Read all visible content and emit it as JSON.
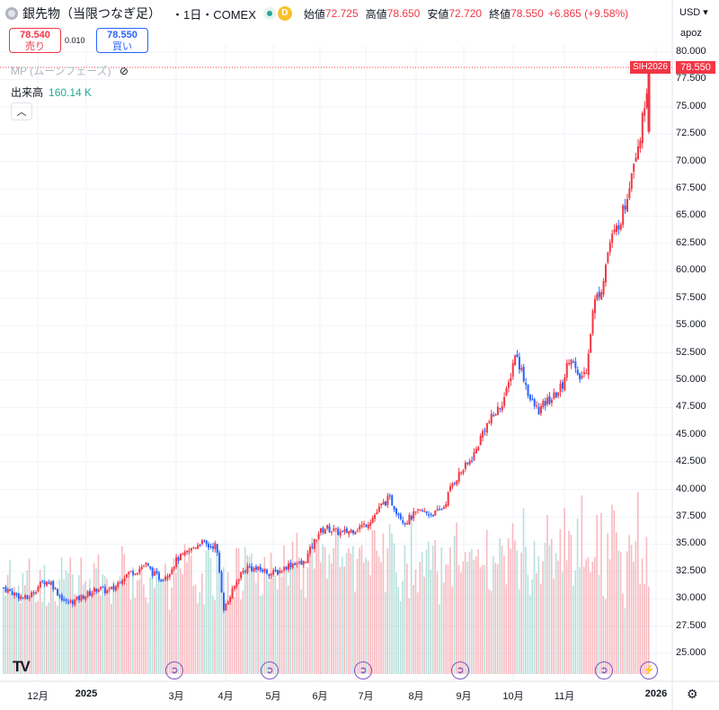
{
  "header": {
    "title": "銀先物（当限つなぎ足）",
    "interval": "・1日・COMEX",
    "d_badge": "D",
    "open_label": "始値",
    "open": "72.725",
    "high_label": "高値",
    "high": "78.650",
    "low_label": "安値",
    "low": "72.720",
    "close_label": "終値",
    "close": "78.550",
    "change": "+6.865 (+9.58%)"
  },
  "trade": {
    "sell_price": "78.540",
    "sell_label": "売り",
    "spread": "0.010",
    "buy_price": "78.550",
    "buy_label": "買い"
  },
  "indicators": {
    "mp_label": "MP (ムーンフェーズ)",
    "volume_label": "出来高",
    "volume_value": "160.14 K",
    "collapse_icon": "chevron-up-icon"
  },
  "right_panel": {
    "currency": "USD",
    "scale": "apoz"
  },
  "price_tag": {
    "symbol": "SIH2026",
    "price": "78.550"
  },
  "logo": "TV",
  "colors": {
    "up": "#f23645",
    "down": "#2962ff",
    "vol_up": "#f7a9b0",
    "vol_down": "#a6d8d3"
  },
  "chart_data": {
    "type": "candlestick",
    "y_axis_ticks": [
      "80.000",
      "77.500",
      "75.000",
      "72.500",
      "70.000",
      "67.500",
      "65.000",
      "62.500",
      "60.000",
      "57.500",
      "55.000",
      "52.500",
      "50.000",
      "47.500",
      "45.000",
      "42.500",
      "40.000",
      "37.500",
      "35.000",
      "32.500",
      "30.000",
      "27.500",
      "25.000"
    ],
    "ylim": [
      24,
      80.5
    ],
    "x_axis_ticks": [
      "12月",
      "2025",
      "3月",
      "4月",
      "5月",
      "6月",
      "7月",
      "8月",
      "9月",
      "10月",
      "11月",
      "2026"
    ],
    "grid": true,
    "price_series": [
      {
        "m": "2024-11",
        "v": 31.0
      },
      {
        "m": "2024-11",
        "v": 30.6
      },
      {
        "m": "2024-11",
        "v": 30.2
      },
      {
        "m": "2024-12",
        "v": 30.0
      },
      {
        "m": "2024-12",
        "v": 30.8
      },
      {
        "m": "2024-12",
        "v": 31.6
      },
      {
        "m": "2024-12",
        "v": 31.5
      },
      {
        "m": "2024-12",
        "v": 30.4
      },
      {
        "m": "2024-12",
        "v": 29.6
      },
      {
        "m": "2025-01",
        "v": 29.8
      },
      {
        "m": "2025-01",
        "v": 30.2
      },
      {
        "m": "2025-01",
        "v": 30.5
      },
      {
        "m": "2025-01",
        "v": 31.0
      },
      {
        "m": "2025-01",
        "v": 30.7
      },
      {
        "m": "2025-01",
        "v": 30.9
      },
      {
        "m": "2025-02",
        "v": 31.9
      },
      {
        "m": "2025-02",
        "v": 32.4
      },
      {
        "m": "2025-02",
        "v": 32.6
      },
      {
        "m": "2025-02",
        "v": 33.2
      },
      {
        "m": "2025-02",
        "v": 32.3
      },
      {
        "m": "2025-02",
        "v": 31.8
      },
      {
        "m": "2025-03",
        "v": 32.4
      },
      {
        "m": "2025-03",
        "v": 33.6
      },
      {
        "m": "2025-03",
        "v": 34.0
      },
      {
        "m": "2025-03",
        "v": 34.6
      },
      {
        "m": "2025-03",
        "v": 35.2
      },
      {
        "m": "2025-03",
        "v": 34.8
      },
      {
        "m": "2025-04",
        "v": 34.9
      },
      {
        "m": "2025-04",
        "v": 29.0
      },
      {
        "m": "2025-04",
        "v": 30.5
      },
      {
        "m": "2025-04",
        "v": 32.2
      },
      {
        "m": "2025-04",
        "v": 32.9
      },
      {
        "m": "2025-04",
        "v": 32.7
      },
      {
        "m": "2025-05",
        "v": 32.6
      },
      {
        "m": "2025-05",
        "v": 32.3
      },
      {
        "m": "2025-05",
        "v": 32.5
      },
      {
        "m": "2025-05",
        "v": 33.0
      },
      {
        "m": "2025-05",
        "v": 33.3
      },
      {
        "m": "2025-05",
        "v": 33.1
      },
      {
        "m": "2025-06",
        "v": 34.5
      },
      {
        "m": "2025-06",
        "v": 36.0
      },
      {
        "m": "2025-06",
        "v": 36.5
      },
      {
        "m": "2025-06",
        "v": 36.2
      },
      {
        "m": "2025-06",
        "v": 36.0
      },
      {
        "m": "2025-06",
        "v": 36.2
      },
      {
        "m": "2025-07",
        "v": 36.5
      },
      {
        "m": "2025-07",
        "v": 36.8
      },
      {
        "m": "2025-07",
        "v": 37.5
      },
      {
        "m": "2025-07",
        "v": 38.5
      },
      {
        "m": "2025-07",
        "v": 39.2
      },
      {
        "m": "2025-07",
        "v": 38.0
      },
      {
        "m": "2025-08",
        "v": 37.0
      },
      {
        "m": "2025-08",
        "v": 37.6
      },
      {
        "m": "2025-08",
        "v": 38.0
      },
      {
        "m": "2025-08",
        "v": 37.8
      },
      {
        "m": "2025-08",
        "v": 37.8
      },
      {
        "m": "2025-08",
        "v": 38.5
      },
      {
        "m": "2025-09",
        "v": 40.5
      },
      {
        "m": "2025-09",
        "v": 41.5
      },
      {
        "m": "2025-09",
        "v": 42.3
      },
      {
        "m": "2025-09",
        "v": 43.5
      },
      {
        "m": "2025-09",
        "v": 45.5
      },
      {
        "m": "2025-09",
        "v": 46.5
      },
      {
        "m": "2025-10",
        "v": 47.5
      },
      {
        "m": "2025-10",
        "v": 49.0
      },
      {
        "m": "2025-10",
        "v": 52.5
      },
      {
        "m": "2025-10",
        "v": 50.5
      },
      {
        "m": "2025-10",
        "v": 48.0
      },
      {
        "m": "2025-10",
        "v": 47.2
      },
      {
        "m": "2025-11",
        "v": 48.0
      },
      {
        "m": "2025-11",
        "v": 48.5
      },
      {
        "m": "2025-11",
        "v": 49.5
      },
      {
        "m": "2025-11",
        "v": 52.5
      },
      {
        "m": "2025-11",
        "v": 50.0
      },
      {
        "m": "2025-11",
        "v": 50.8
      },
      {
        "m": "2025-12",
        "v": 57.0
      },
      {
        "m": "2025-12",
        "v": 58.5
      },
      {
        "m": "2025-12",
        "v": 62.5
      },
      {
        "m": "2025-12",
        "v": 64.0
      },
      {
        "m": "2025-12",
        "v": 66.0
      },
      {
        "m": "2025-12",
        "v": 70.0
      },
      {
        "m": "2025-12",
        "v": 72.7
      },
      {
        "m": "2025-12",
        "v": 78.55
      }
    ],
    "volume_max_note": "volume bars shown in lower area, no numeric axis"
  }
}
